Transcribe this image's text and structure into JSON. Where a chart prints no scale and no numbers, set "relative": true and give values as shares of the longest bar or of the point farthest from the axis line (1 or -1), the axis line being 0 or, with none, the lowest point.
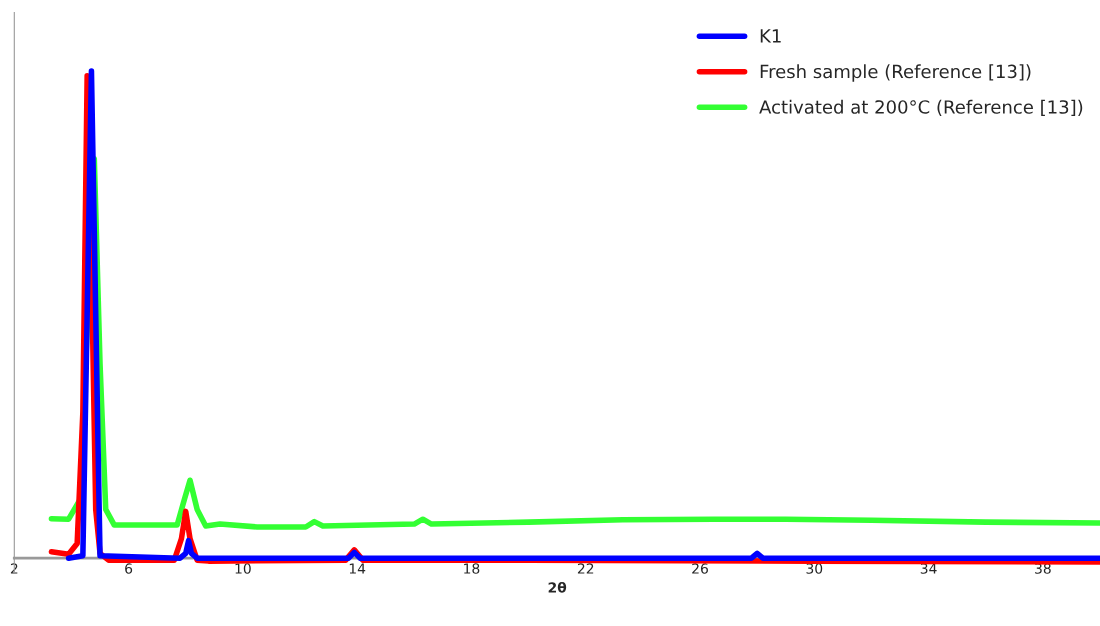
{
  "chart_data": {
    "type": "line",
    "relative": true,
    "xlabel": "2θ",
    "xlim": [
      2,
      40
    ],
    "xticks": [
      2,
      6,
      10,
      14,
      18,
      22,
      26,
      30,
      34,
      38
    ],
    "legend": "top right",
    "grid": false,
    "marker": "none",
    "line_style": "solid",
    "series": [
      {
        "name": "K1",
        "color": "#0000ff",
        "x": [
          3.9,
          4.4,
          4.55,
          4.7,
          4.85,
          5.0,
          7.8,
          8.0,
          8.1,
          8.2,
          8.4,
          13.7,
          13.9,
          14.1,
          27.8,
          28.0,
          28.2,
          40
        ],
        "values": [
          0,
          0.005,
          0.5,
          1,
          0.5,
          0.005,
          0,
          0.01,
          0.036,
          0.01,
          0,
          0,
          0.012,
          0,
          0,
          0.01,
          0,
          0
        ]
      },
      {
        "name": "Fresh sample (Reference [13])",
        "color": "#ff0000",
        "x": [
          3.3,
          3.9,
          4.2,
          4.4,
          4.55,
          4.7,
          4.85,
          5.0,
          5.3,
          7.6,
          7.85,
          8.0,
          8.15,
          8.4,
          8.8,
          13.6,
          13.9,
          14.2,
          20,
          30,
          40
        ],
        "values": [
          0.013,
          0.008,
          0.03,
          0.3,
          0.99,
          0.6,
          0.1,
          0.01,
          -0.004,
          -0.004,
          0.04,
          0.096,
          0.04,
          -0.004,
          -0.006,
          -0.004,
          0.017,
          -0.004,
          -0.004,
          -0.006,
          -0.008
        ]
      },
      {
        "name": "Activated at 200°C (Reference [13])",
        "color": "#33ff33",
        "x": [
          3.3,
          3.9,
          4.3,
          4.55,
          4.8,
          5.0,
          5.2,
          5.5,
          7.7,
          7.95,
          8.15,
          8.4,
          8.7,
          9.2,
          10.5,
          12.2,
          12.5,
          12.8,
          16.0,
          16.3,
          16.6,
          20,
          23.3,
          26.5,
          29,
          32,
          36,
          40
        ],
        "values": [
          0.081,
          0.08,
          0.12,
          null,
          0.82,
          0.4,
          0.1,
          0.068,
          0.068,
          0.12,
          0.16,
          0.1,
          0.066,
          0.07,
          0.064,
          0.064,
          0.075,
          0.066,
          0.07,
          0.08,
          0.07,
          0.074,
          0.079,
          0.08,
          0.08,
          0.078,
          0.074,
          0.072
        ]
      }
    ]
  }
}
